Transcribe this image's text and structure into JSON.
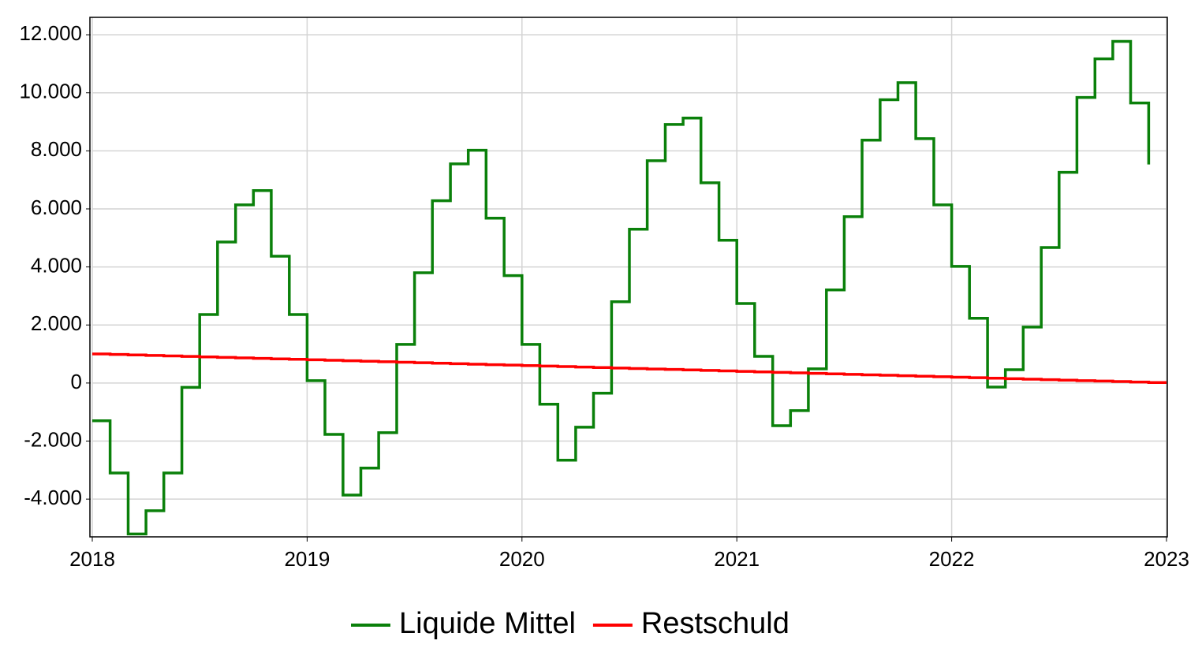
{
  "chart_data": {
    "type": "line",
    "step": true,
    "x": [
      2018,
      2018.083,
      2018.167,
      2018.25,
      2018.333,
      2018.417,
      2018.5,
      2018.583,
      2018.667,
      2018.75,
      2018.833,
      2018.917,
      2019,
      2019.083,
      2019.167,
      2019.25,
      2019.333,
      2019.417,
      2019.5,
      2019.583,
      2019.667,
      2019.75,
      2019.833,
      2019.917,
      2020,
      2020.083,
      2020.167,
      2020.25,
      2020.333,
      2020.417,
      2020.5,
      2020.583,
      2020.667,
      2020.75,
      2020.833,
      2020.917,
      2021,
      2021.083,
      2021.167,
      2021.25,
      2021.333,
      2021.417,
      2021.5,
      2021.583,
      2021.667,
      2021.75,
      2021.833,
      2021.917,
      2022,
      2022.083,
      2022.167,
      2022.25,
      2022.333,
      2022.417,
      2022.5,
      2022.583,
      2022.667,
      2022.75,
      2022.833,
      2022.917
    ],
    "series": [
      {
        "name": "Liquide Mittel",
        "color": "#0a800a",
        "values": [
          -1300,
          -3100,
          -5200,
          -4400,
          -3100,
          -150,
          2360,
          4860,
          6140,
          6630,
          4370,
          2360,
          80,
          -1770,
          -3860,
          -2930,
          -1710,
          1330,
          3800,
          6280,
          7550,
          8020,
          5680,
          3700,
          1330,
          -730,
          -2660,
          -1520,
          -350,
          2800,
          5300,
          7660,
          8910,
          9130,
          6900,
          4920,
          2740,
          920,
          -1470,
          -950,
          490,
          3210,
          5730,
          8370,
          9760,
          10350,
          8420,
          6140,
          4020,
          2230,
          -140,
          460,
          1930,
          4670,
          7260,
          9840,
          11170,
          11770,
          9650,
          7530
        ]
      },
      {
        "name": "Restschuld",
        "color": "#ff0000",
        "values": [
          1000,
          983,
          967,
          950,
          933,
          917,
          900,
          883,
          867,
          850,
          833,
          817,
          800,
          783,
          767,
          750,
          733,
          717,
          700,
          683,
          667,
          650,
          633,
          617,
          600,
          583,
          567,
          550,
          533,
          517,
          500,
          483,
          467,
          450,
          433,
          417,
          400,
          383,
          367,
          350,
          333,
          317,
          300,
          283,
          267,
          250,
          233,
          217,
          200,
          183,
          167,
          150,
          133,
          117,
          100,
          83,
          67,
          50,
          33,
          17
        ]
      }
    ],
    "xlim": [
      2018,
      2023
    ],
    "xticks": [
      2018,
      2019,
      2020,
      2021,
      2022,
      2023
    ],
    "ylim": [
      -5300,
      12600
    ],
    "yticks": [
      {
        "value": -4000,
        "label": "-4.000"
      },
      {
        "value": -2000,
        "label": "-2.000"
      },
      0,
      {
        "value": 2000,
        "label": "2.000"
      },
      {
        "value": 4000,
        "label": "4.000"
      },
      {
        "value": 6000,
        "label": "6.000"
      },
      {
        "value": 8000,
        "label": "8.000"
      },
      {
        "value": 10000,
        "label": "10.000"
      },
      {
        "value": 12000,
        "label": "12.000"
      }
    ],
    "grid": true,
    "legend": "bottom"
  }
}
